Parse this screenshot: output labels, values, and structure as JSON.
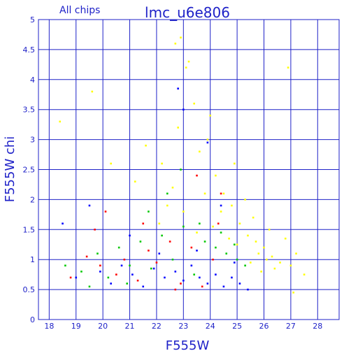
{
  "chart_data": {
    "type": "scatter",
    "title": "lmc_u6e806",
    "subtitle": "All chips",
    "xlabel": "F555W",
    "ylabel": "F555W chi",
    "xlim": [
      17.6,
      28.8
    ],
    "ylim": [
      0,
      5
    ],
    "x_ticks": [
      "18",
      "19",
      "20",
      "21",
      "22",
      "23",
      "24",
      "25",
      "26",
      "27",
      "28"
    ],
    "y_ticks": [
      "0",
      "0.5",
      "1",
      "1.5",
      "2",
      "2.5",
      "3",
      "3.5",
      "4",
      "4.5",
      "5"
    ],
    "grid": true,
    "colors": {
      "axis": "#1f22c8",
      "grid": "#1f22c8",
      "series_yellow": "#ffff00",
      "series_blue": "#0000ff",
      "series_green": "#00c800",
      "series_red": "#ff0000"
    },
    "series": [
      {
        "color": "#ffff00",
        "points": [
          [
            22.2,
            2.6
          ],
          [
            22.6,
            2.2
          ],
          [
            22.9,
            4.7
          ],
          [
            23.1,
            4.2
          ],
          [
            23.4,
            3.6
          ],
          [
            22.8,
            3.2
          ],
          [
            23.6,
            2.8
          ],
          [
            23.9,
            3.0
          ],
          [
            24.2,
            2.4
          ],
          [
            22.4,
            1.9
          ],
          [
            23.0,
            1.8
          ],
          [
            24.5,
            2.1
          ],
          [
            24.8,
            1.9
          ],
          [
            25.1,
            1.6
          ],
          [
            25.4,
            1.4
          ],
          [
            25.7,
            1.3
          ],
          [
            26.0,
            1.2
          ],
          [
            26.3,
            1.05
          ],
          [
            26.6,
            0.95
          ],
          [
            25.9,
            0.8
          ],
          [
            26.8,
            1.35
          ],
          [
            27.2,
            1.1
          ],
          [
            25.3,
            2.0
          ],
          [
            25.6,
            1.7
          ],
          [
            26.2,
            1.5
          ],
          [
            24.1,
            1.55
          ],
          [
            23.5,
            1.45
          ],
          [
            24.7,
            1.35
          ],
          [
            25.0,
            1.25
          ],
          [
            25.8,
            1.1
          ],
          [
            26.4,
            0.85
          ],
          [
            27.0,
            0.9
          ],
          [
            27.5,
            0.75
          ],
          [
            21.6,
            2.9
          ],
          [
            21.2,
            2.3
          ],
          [
            20.3,
            2.6
          ],
          [
            19.6,
            3.8
          ],
          [
            18.4,
            3.3
          ],
          [
            22.7,
            4.6
          ],
          [
            23.2,
            4.3
          ],
          [
            24.0,
            3.4
          ],
          [
            26.9,
            4.2
          ],
          [
            27.1,
            0.45
          ],
          [
            24.9,
            2.6
          ],
          [
            23.8,
            2.1
          ],
          [
            22.1,
            1.6
          ],
          [
            25.5,
            0.95
          ],
          [
            26.1,
            1.0
          ],
          [
            24.4,
            1.8
          ]
        ]
      },
      {
        "color": "#00c800",
        "points": [
          [
            18.6,
            0.9
          ],
          [
            19.2,
            0.8
          ],
          [
            19.8,
            1.1
          ],
          [
            20.2,
            0.7
          ],
          [
            20.6,
            1.2
          ],
          [
            21.0,
            0.9
          ],
          [
            21.4,
            1.3
          ],
          [
            21.8,
            0.85
          ],
          [
            22.2,
            1.4
          ],
          [
            22.6,
            1.0
          ],
          [
            23.0,
            1.55
          ],
          [
            23.4,
            0.75
          ],
          [
            23.8,
            1.3
          ],
          [
            24.2,
            1.2
          ],
          [
            24.6,
            1.1
          ],
          [
            25.0,
            1.0
          ],
          [
            25.3,
            0.9
          ],
          [
            22.9,
            2.5
          ],
          [
            22.4,
            2.1
          ],
          [
            21.7,
            1.8
          ],
          [
            20.9,
            0.6
          ],
          [
            19.5,
            0.55
          ],
          [
            24.4,
            1.45
          ],
          [
            23.6,
            1.6
          ],
          [
            24.9,
            1.25
          ]
        ]
      },
      {
        "color": "#ff0000",
        "points": [
          [
            18.8,
            0.7
          ],
          [
            19.4,
            1.05
          ],
          [
            19.9,
            0.9
          ],
          [
            20.1,
            1.8
          ],
          [
            20.5,
            0.75
          ],
          [
            20.8,
            1.0
          ],
          [
            21.3,
            0.65
          ],
          [
            21.7,
            1.15
          ],
          [
            22.0,
            0.95
          ],
          [
            22.5,
            1.3
          ],
          [
            22.9,
            0.6
          ],
          [
            23.3,
            1.2
          ],
          [
            23.7,
            0.55
          ],
          [
            24.1,
            1.0
          ],
          [
            24.4,
            2.1
          ],
          [
            24.3,
            1.6
          ],
          [
            23.5,
            2.4
          ],
          [
            22.7,
            0.5
          ],
          [
            21.5,
            1.6
          ],
          [
            19.7,
            1.5
          ]
        ]
      },
      {
        "color": "#0000ff",
        "points": [
          [
            18.5,
            1.6
          ],
          [
            19.0,
            0.7
          ],
          [
            19.5,
            1.9
          ],
          [
            19.9,
            0.8
          ],
          [
            20.3,
            0.6
          ],
          [
            20.7,
            0.9
          ],
          [
            21.1,
            0.75
          ],
          [
            21.5,
            0.55
          ],
          [
            21.9,
            0.85
          ],
          [
            22.3,
            0.7
          ],
          [
            22.7,
            0.8
          ],
          [
            23.0,
            0.65
          ],
          [
            23.3,
            0.9
          ],
          [
            23.6,
            0.7
          ],
          [
            23.9,
            0.6
          ],
          [
            24.2,
            0.75
          ],
          [
            24.5,
            0.55
          ],
          [
            24.8,
            0.7
          ],
          [
            25.1,
            0.6
          ],
          [
            25.4,
            0.5
          ],
          [
            23.0,
            3.5
          ],
          [
            23.9,
            2.95
          ],
          [
            22.8,
            3.85
          ],
          [
            24.4,
            1.9
          ],
          [
            21.0,
            1.4
          ],
          [
            22.1,
            1.1
          ],
          [
            23.5,
            1.15
          ],
          [
            24.9,
            0.95
          ]
        ]
      }
    ]
  }
}
